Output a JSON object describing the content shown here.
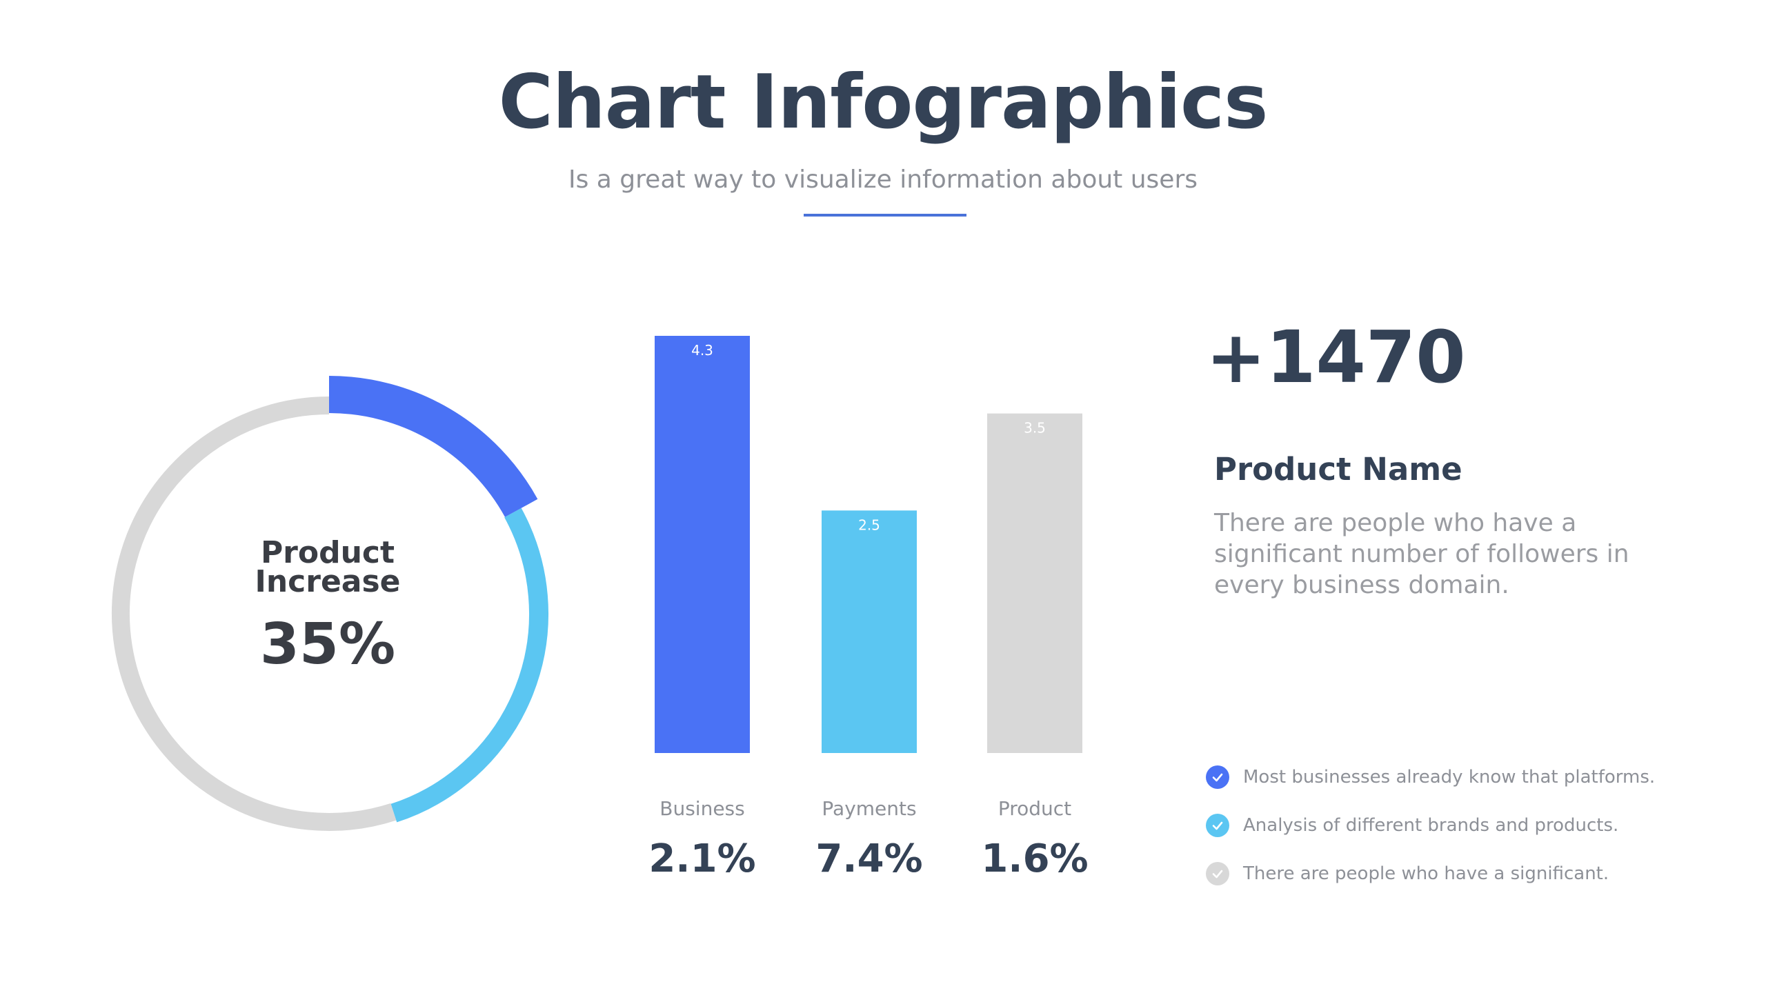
{
  "header": {
    "title": "Chart Infographics",
    "subtitle": "Is a great way to visualize information about users"
  },
  "colors": {
    "blue": "#4a72f5",
    "light_blue": "#5bc6f2",
    "gray": "#d8d8d8",
    "dark_text": "#344256",
    "muted_text": "#8d9097"
  },
  "donut": {
    "label_line1": "Product",
    "label_line2": "Increase",
    "value_text": "35%"
  },
  "chart_data": [
    {
      "type": "pie",
      "segments": [
        {
          "label": "blue",
          "percent": 17,
          "color": "#4a72f5"
        },
        {
          "label": "light-blue",
          "percent": 28,
          "color": "#5bc6f2"
        },
        {
          "label": "gray",
          "percent": 55,
          "color": "#d8d8d8"
        }
      ],
      "center_label": "Product Increase",
      "center_value": "35%"
    },
    {
      "type": "bar",
      "categories": [
        "Business",
        "Payments",
        "Product"
      ],
      "values": [
        4.3,
        2.5,
        3.5
      ],
      "value_labels": [
        "4.3",
        "2.5",
        "3.5"
      ],
      "colors": [
        "#4a72f5",
        "#5bc6f2",
        "#d8d8d8"
      ],
      "percentages": [
        "2.1%",
        "7.4%",
        "1.6%"
      ],
      "ylim": [
        0,
        4.3
      ]
    }
  ],
  "info": {
    "big_number": "+1470",
    "product_name": "Product Name",
    "description": "There are people who have a significant number of followers in every business domain."
  },
  "checklist": [
    {
      "text": "Most businesses already know that platforms.",
      "color": "#4a72f5"
    },
    {
      "text": "Analysis of different brands and products.",
      "color": "#5bc6f2"
    },
    {
      "text": "There are people who have a significant.",
      "color": "#d8d8d8"
    }
  ]
}
